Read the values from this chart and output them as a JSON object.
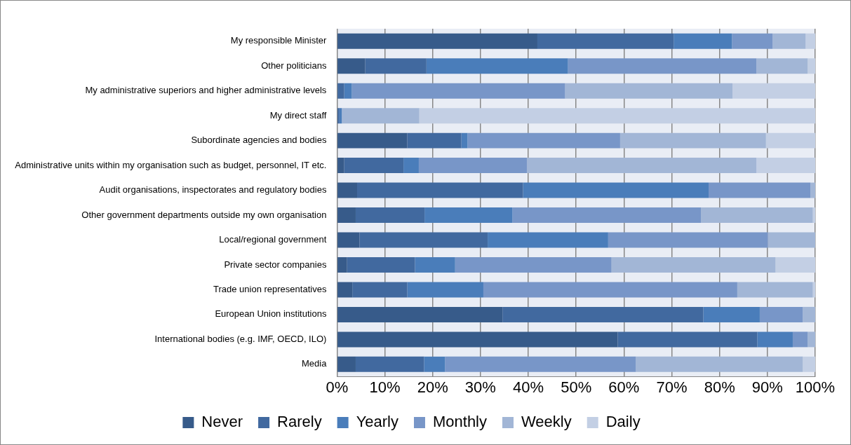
{
  "chart_data": {
    "type": "bar",
    "orientation": "horizontal",
    "stacked": true,
    "categories": [
      "My responsible Minister",
      "Other politicians",
      "My administrative superiors and higher administrative levels",
      "My direct staff",
      "Subordinate agencies and bodies",
      "Administrative units within my organisation such as budget, personnel, IT etc.",
      "Audit organisations, inspectorates and regulatory bodies",
      "Other government departments outside my own organisation",
      "Local/regional government",
      "Private sector companies",
      "Trade union representatives",
      "European Union institutions",
      "International bodies (e.g. IMF, OECD, ILO)",
      "Media"
    ],
    "series": [
      {
        "name": "Never",
        "color": "#375b8a",
        "values": [
          41.9,
          5.9,
          0,
          0,
          14.7,
          1.5,
          4.2,
          3.9,
          4.7,
          2.1,
          3.2,
          34.6,
          58.7,
          3.9
        ]
      },
      {
        "name": "Rarely",
        "color": "#41699f",
        "values": [
          28.5,
          12.8,
          1.5,
          0.5,
          11.3,
          12.4,
          34.7,
          14.4,
          26.8,
          14.2,
          11.5,
          42.0,
          29.2,
          14.3
        ]
      },
      {
        "name": "Yearly",
        "color": "#4a7dba",
        "values": [
          12.2,
          29.6,
          1.6,
          0.5,
          1.3,
          3.2,
          38.8,
          18.4,
          25.2,
          8.4,
          15.9,
          11.8,
          7.4,
          4.4
        ]
      },
      {
        "name": "Monthly",
        "color": "#7896c8",
        "values": [
          8.5,
          39.4,
          44.6,
          0,
          31.9,
          22.6,
          21.3,
          39.4,
          33.4,
          32.7,
          53.1,
          9.0,
          3.1,
          39.9
        ]
      },
      {
        "name": "Weekly",
        "color": "#a2b6d6",
        "values": [
          6.9,
          10.7,
          35.0,
          16.2,
          30.5,
          48.0,
          1.0,
          23.4,
          9.9,
          34.3,
          15.8,
          2.6,
          1.6,
          34.9
        ]
      },
      {
        "name": "Daily",
        "color": "#c3cfe4",
        "values": [
          2.0,
          1.6,
          17.3,
          82.8,
          10.3,
          12.3,
          0,
          0.5,
          0,
          8.3,
          0.5,
          0,
          0,
          2.6
        ]
      }
    ],
    "xlim": [
      0,
      100
    ],
    "xticks": [
      {
        "value": 0,
        "label": "0%"
      },
      {
        "value": 10,
        "label": "10%"
      },
      {
        "value": 20,
        "label": "20%"
      },
      {
        "value": 30,
        "label": "30%"
      },
      {
        "value": 40,
        "label": "40%"
      },
      {
        "value": 50,
        "label": "50%"
      },
      {
        "value": 60,
        "label": "60%"
      },
      {
        "value": 70,
        "label": "70%"
      },
      {
        "value": 80,
        "label": "80%"
      },
      {
        "value": 90,
        "label": "90%"
      },
      {
        "value": 100,
        "label": "100%"
      }
    ],
    "grid": "x",
    "legend": "bottom"
  }
}
